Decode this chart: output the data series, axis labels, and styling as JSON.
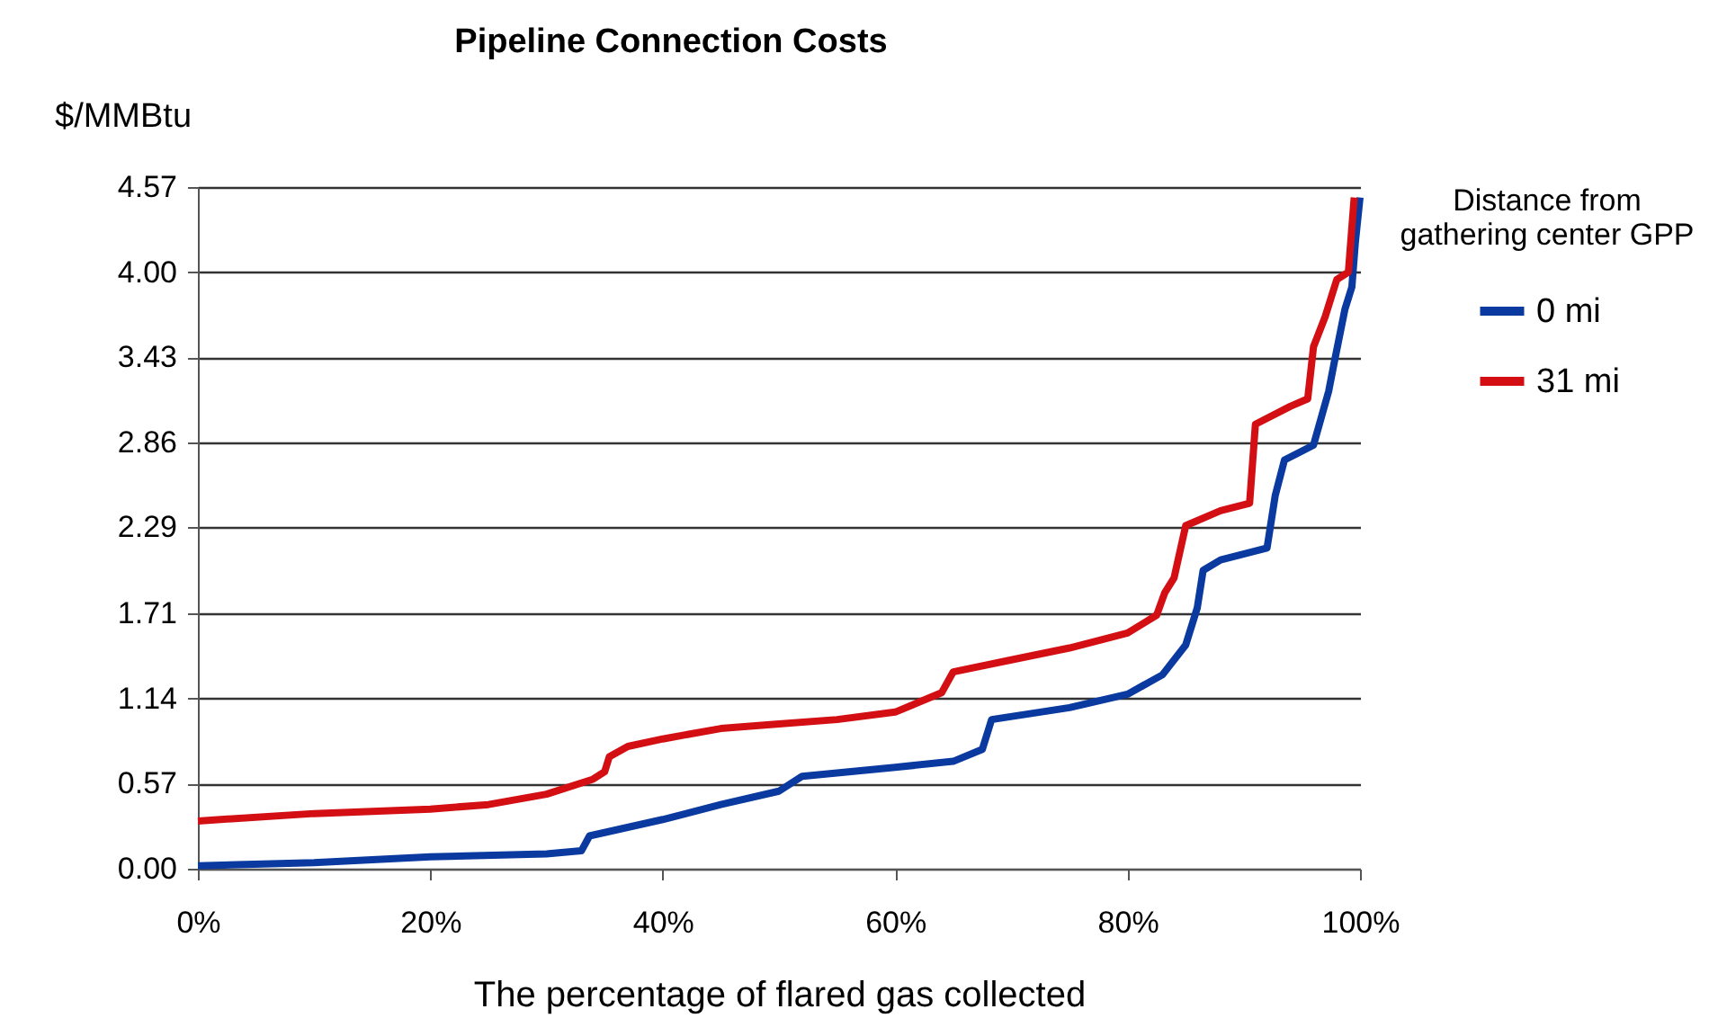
{
  "chart_data": {
    "type": "line",
    "title": "Pipeline Connection Costs",
    "xlabel": "The percentage of flared gas collected",
    "ylabel": "$/MMBtu",
    "legend_title": "Distance from gathering center GPP",
    "xlim": [
      0,
      100
    ],
    "ylim": [
      0,
      4.57
    ],
    "xticks": [
      {
        "value": 0,
        "label": "0%"
      },
      {
        "value": 20,
        "label": "20%"
      },
      {
        "value": 40,
        "label": "40%"
      },
      {
        "value": 60,
        "label": "60%"
      },
      {
        "value": 80,
        "label": "80%"
      },
      {
        "value": 100,
        "label": "100%"
      }
    ],
    "yticks": [
      {
        "value": 0,
        "label": "0.00"
      },
      0.57,
      1.14,
      1.71,
      2.29,
      2.86,
      3.43,
      {
        "value": 4,
        "label": "4.00"
      },
      4.57
    ],
    "grid": "y",
    "legend": "right",
    "marker": "none",
    "line_style": "solid",
    "series": [
      {
        "name": " 0 mi",
        "color": "#0a3aa0",
        "x": [
          0,
          10,
          20,
          30,
          33,
          33.7,
          40,
          45,
          50,
          52,
          60,
          65,
          67.5,
          68.3,
          75,
          80,
          83,
          85,
          86,
          86.5,
          88,
          92,
          92.7,
          93.5,
          96,
          97.3,
          97.8,
          98.7,
          99.3,
          99.6,
          100
        ],
        "values": [
          0.02,
          0.04,
          0.08,
          0.1,
          0.12,
          0.22,
          0.33,
          0.43,
          0.52,
          0.62,
          0.68,
          0.72,
          0.8,
          1.0,
          1.08,
          1.17,
          1.3,
          1.5,
          1.75,
          2.0,
          2.07,
          2.15,
          2.5,
          2.74,
          2.84,
          3.2,
          3.4,
          3.75,
          3.9,
          4.2,
          4.5
        ]
      },
      {
        "name": "31 mi",
        "color": "#d40f14",
        "x": [
          0,
          10,
          20,
          25,
          30,
          34,
          35,
          35.4,
          37,
          40,
          45,
          50,
          55,
          60,
          64,
          65,
          70,
          75,
          80,
          82.5,
          83.2,
          84,
          85,
          88,
          90.5,
          91,
          94,
          95.5,
          96,
          97,
          98,
          99,
          99.5
        ],
        "values": [
          0.32,
          0.37,
          0.4,
          0.43,
          0.5,
          0.6,
          0.65,
          0.75,
          0.82,
          0.87,
          0.94,
          0.97,
          1.0,
          1.05,
          1.18,
          1.32,
          1.4,
          1.48,
          1.58,
          1.7,
          1.85,
          1.95,
          2.3,
          2.4,
          2.45,
          2.98,
          3.1,
          3.15,
          3.5,
          3.7,
          3.95,
          4.0,
          4.5
        ]
      }
    ]
  }
}
